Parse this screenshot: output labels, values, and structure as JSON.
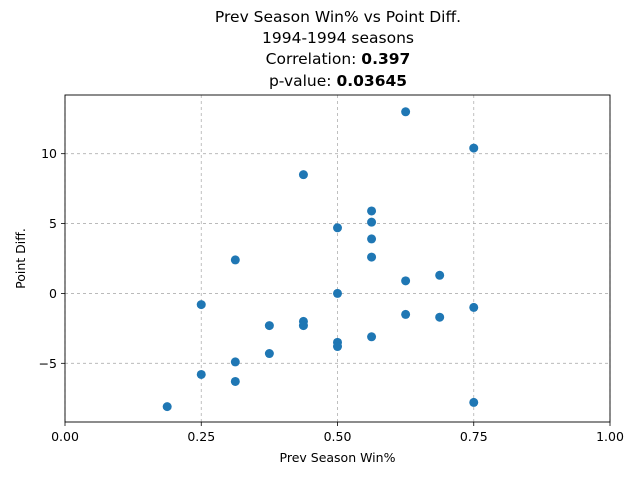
{
  "chart_data": {
    "type": "scatter",
    "title_lines": [
      "Prev Season Win% vs Point Diff.",
      "1994-1994 seasons"
    ],
    "correlation_label": "Correlation: ",
    "correlation_value": "0.397",
    "pvalue_label": "p-value: ",
    "pvalue_value": "0.03645",
    "xlabel": "Prev Season Win%",
    "ylabel": "Point Diff.",
    "xlim": [
      0.0,
      1.0
    ],
    "ylim": [
      -9.2,
      14.2
    ],
    "xticks": [
      {
        "value": 0.0,
        "label": "0.00"
      },
      {
        "value": 0.25,
        "label": "0.25"
      },
      {
        "value": 0.5,
        "label": "0.50"
      },
      {
        "value": 0.75,
        "label": "0.75"
      },
      {
        "value": 1.0,
        "label": "1.00"
      }
    ],
    "yticks": [
      {
        "value": -5,
        "label": "−5"
      },
      {
        "value": 0,
        "label": "0"
      },
      {
        "value": 5,
        "label": "5"
      },
      {
        "value": 10,
        "label": "10"
      }
    ],
    "grid": true,
    "marker_color": "#1f77b4",
    "points": [
      {
        "x": 0.625,
        "y": 13.0
      },
      {
        "x": 0.75,
        "y": 10.4
      },
      {
        "x": 0.4375,
        "y": 8.5
      },
      {
        "x": 0.5625,
        "y": 5.9
      },
      {
        "x": 0.5625,
        "y": 5.1
      },
      {
        "x": 0.5,
        "y": 4.7
      },
      {
        "x": 0.5625,
        "y": 3.9
      },
      {
        "x": 0.5625,
        "y": 2.6
      },
      {
        "x": 0.3125,
        "y": 2.4
      },
      {
        "x": 0.6875,
        "y": 1.3
      },
      {
        "x": 0.625,
        "y": 0.9
      },
      {
        "x": 0.5,
        "y": 0.0
      },
      {
        "x": 0.25,
        "y": -0.8
      },
      {
        "x": 0.75,
        "y": -1.0
      },
      {
        "x": 0.625,
        "y": -1.5
      },
      {
        "x": 0.6875,
        "y": -1.7
      },
      {
        "x": 0.4375,
        "y": -2.0
      },
      {
        "x": 0.4375,
        "y": -2.3
      },
      {
        "x": 0.375,
        "y": -2.3
      },
      {
        "x": 0.5625,
        "y": -3.1
      },
      {
        "x": 0.5,
        "y": -3.5
      },
      {
        "x": 0.5,
        "y": -3.8
      },
      {
        "x": 0.375,
        "y": -4.3
      },
      {
        "x": 0.3125,
        "y": -4.9
      },
      {
        "x": 0.25,
        "y": -5.8
      },
      {
        "x": 0.3125,
        "y": -6.3
      },
      {
        "x": 0.75,
        "y": -7.8
      },
      {
        "x": 0.1875,
        "y": -8.1
      }
    ]
  }
}
